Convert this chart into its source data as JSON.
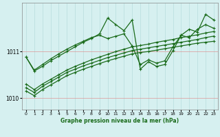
{
  "xlabel": "Graphe pression niveau de la mer (hPa)",
  "bg_color": "#d6f0f0",
  "grid_color": "#afd8d8",
  "line_color": "#1a6b1a",
  "xlim": [
    -0.5,
    23.5
  ],
  "ylim": [
    1009.75,
    1012.05
  ],
  "yticks": [
    1010,
    1011
  ],
  "xticks": [
    0,
    1,
    2,
    3,
    4,
    5,
    6,
    7,
    8,
    9,
    10,
    11,
    12,
    13,
    14,
    15,
    16,
    17,
    18,
    19,
    20,
    21,
    22,
    23
  ],
  "s1_x": [
    0,
    1,
    2,
    3,
    4,
    5,
    6,
    7,
    8,
    9,
    10,
    11,
    12,
    13,
    14,
    15,
    16,
    17,
    18,
    19,
    20,
    21,
    22,
    23
  ],
  "s1_y": [
    1010.15,
    1010.05,
    1010.18,
    1010.28,
    1010.38,
    1010.48,
    1010.55,
    1010.62,
    1010.68,
    1010.74,
    1010.8,
    1010.85,
    1010.9,
    1010.95,
    1010.98,
    1011.0,
    1011.03,
    1011.06,
    1011.09,
    1011.12,
    1011.15,
    1011.18,
    1011.2,
    1011.22
  ],
  "s2_x": [
    0,
    1,
    2,
    3,
    4,
    5,
    6,
    7,
    8,
    9,
    10,
    11,
    12,
    13,
    14,
    15,
    16,
    17,
    18,
    19,
    20,
    21,
    22,
    23
  ],
  "s2_y": [
    1010.22,
    1010.12,
    1010.25,
    1010.35,
    1010.45,
    1010.55,
    1010.62,
    1010.69,
    1010.75,
    1010.81,
    1010.87,
    1010.92,
    1010.97,
    1011.02,
    1011.05,
    1011.08,
    1011.11,
    1011.14,
    1011.17,
    1011.2,
    1011.23,
    1011.26,
    1011.3,
    1011.33
  ],
  "s3_x": [
    0,
    1,
    2,
    3,
    4,
    5,
    6,
    7,
    8,
    9,
    10,
    11,
    12,
    13,
    14,
    15,
    16,
    17,
    18,
    19,
    20,
    21,
    22,
    23
  ],
  "s3_y": [
    1010.3,
    1010.18,
    1010.3,
    1010.4,
    1010.5,
    1010.6,
    1010.68,
    1010.75,
    1010.82,
    1010.88,
    1010.94,
    1011.0,
    1011.05,
    1011.1,
    1011.13,
    1011.16,
    1011.2,
    1011.23,
    1011.26,
    1011.3,
    1011.33,
    1011.36,
    1011.4,
    1011.43
  ],
  "s4_x": [
    0,
    1,
    2,
    3,
    4,
    5,
    6,
    7,
    8,
    9,
    10,
    11,
    12,
    13,
    14,
    15,
    16,
    17,
    18,
    19,
    20,
    21,
    22,
    23
  ],
  "s4_y": [
    1010.88,
    1010.6,
    1010.72,
    1010.84,
    1010.95,
    1011.05,
    1011.14,
    1011.22,
    1011.3,
    1011.35,
    1011.28,
    1011.33,
    1011.38,
    1011.12,
    1010.72,
    1010.82,
    1010.75,
    1010.8,
    1011.1,
    1011.35,
    1011.3,
    1011.48,
    1011.58,
    1011.5
  ],
  "s5_x": [
    0,
    1,
    2,
    3,
    4,
    5,
    6,
    7,
    8,
    9,
    10,
    11,
    12,
    13,
    14,
    15,
    16,
    17,
    18,
    19,
    20,
    21,
    22,
    23
  ],
  "s5_y": [
    1010.88,
    1010.58,
    1010.68,
    1010.8,
    1010.9,
    1011.0,
    1011.1,
    1011.2,
    1011.28,
    1011.38,
    1011.72,
    1011.58,
    1011.45,
    1011.68,
    1010.62,
    1010.78,
    1010.68,
    1010.72,
    1011.02,
    1011.35,
    1011.48,
    1011.42,
    1011.8,
    1011.68
  ]
}
